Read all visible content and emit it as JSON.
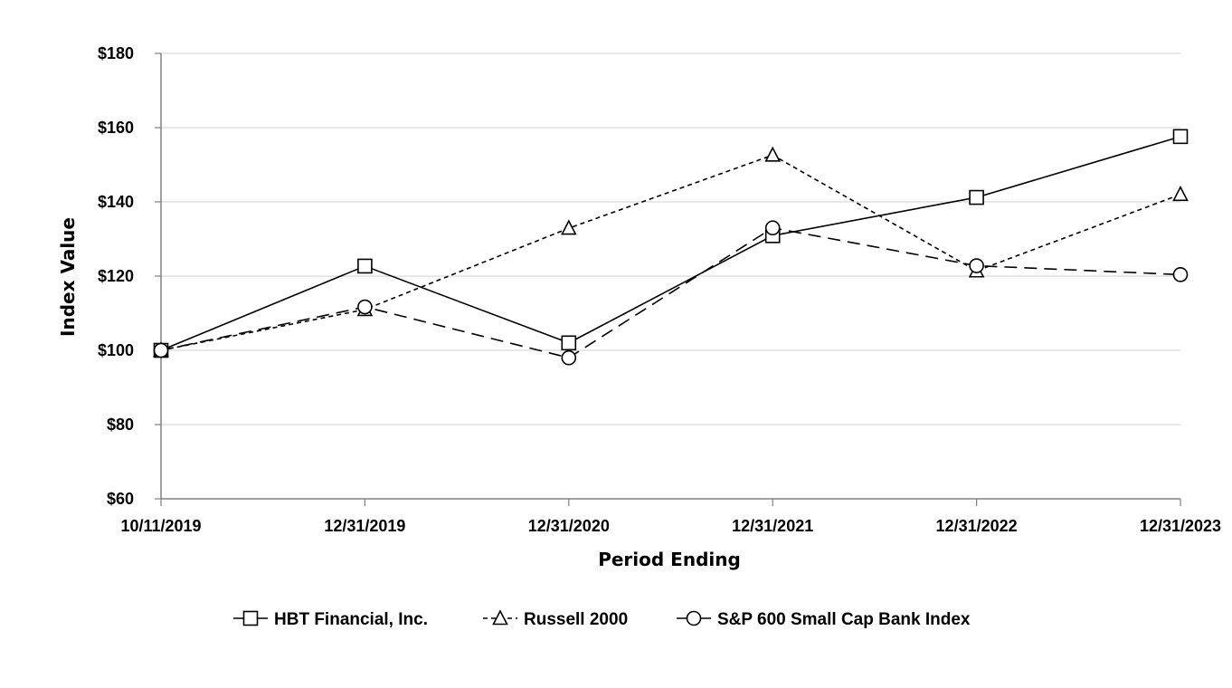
{
  "chart_data": {
    "type": "line",
    "title": "",
    "xlabel": "Period Ending",
    "ylabel": "Index Value",
    "categories": [
      "10/11/2019",
      "12/31/2019",
      "12/31/2020",
      "12/31/2021",
      "12/31/2022",
      "12/31/2023"
    ],
    "ylim": [
      60,
      180
    ],
    "yticks": [
      60,
      80,
      100,
      120,
      140,
      160,
      180
    ],
    "ytick_labels": [
      "$60",
      "$80",
      "$100",
      "$120",
      "$140",
      "$160",
      "$180"
    ],
    "grid": "horizontal",
    "legend_position": "bottom",
    "series": [
      {
        "name": "HBT Financial, Inc.",
        "marker": "square",
        "line_style": "solid",
        "values": [
          100.0,
          122.7,
          102.0,
          130.9,
          141.2,
          157.6
        ]
      },
      {
        "name": "Russell 2000",
        "marker": "triangle",
        "line_style": "short-dash",
        "values": [
          100.0,
          111.0,
          132.9,
          152.6,
          121.4,
          142.0
        ]
      },
      {
        "name": "S&P 600 Small Cap Bank Index",
        "marker": "circle",
        "line_style": "long-dash",
        "values": [
          100.0,
          111.7,
          98.0,
          133.0,
          122.8,
          120.4
        ]
      }
    ],
    "colors": {
      "line": "#000000",
      "grid": "#d9d9d9",
      "axis": "#808080"
    }
  }
}
